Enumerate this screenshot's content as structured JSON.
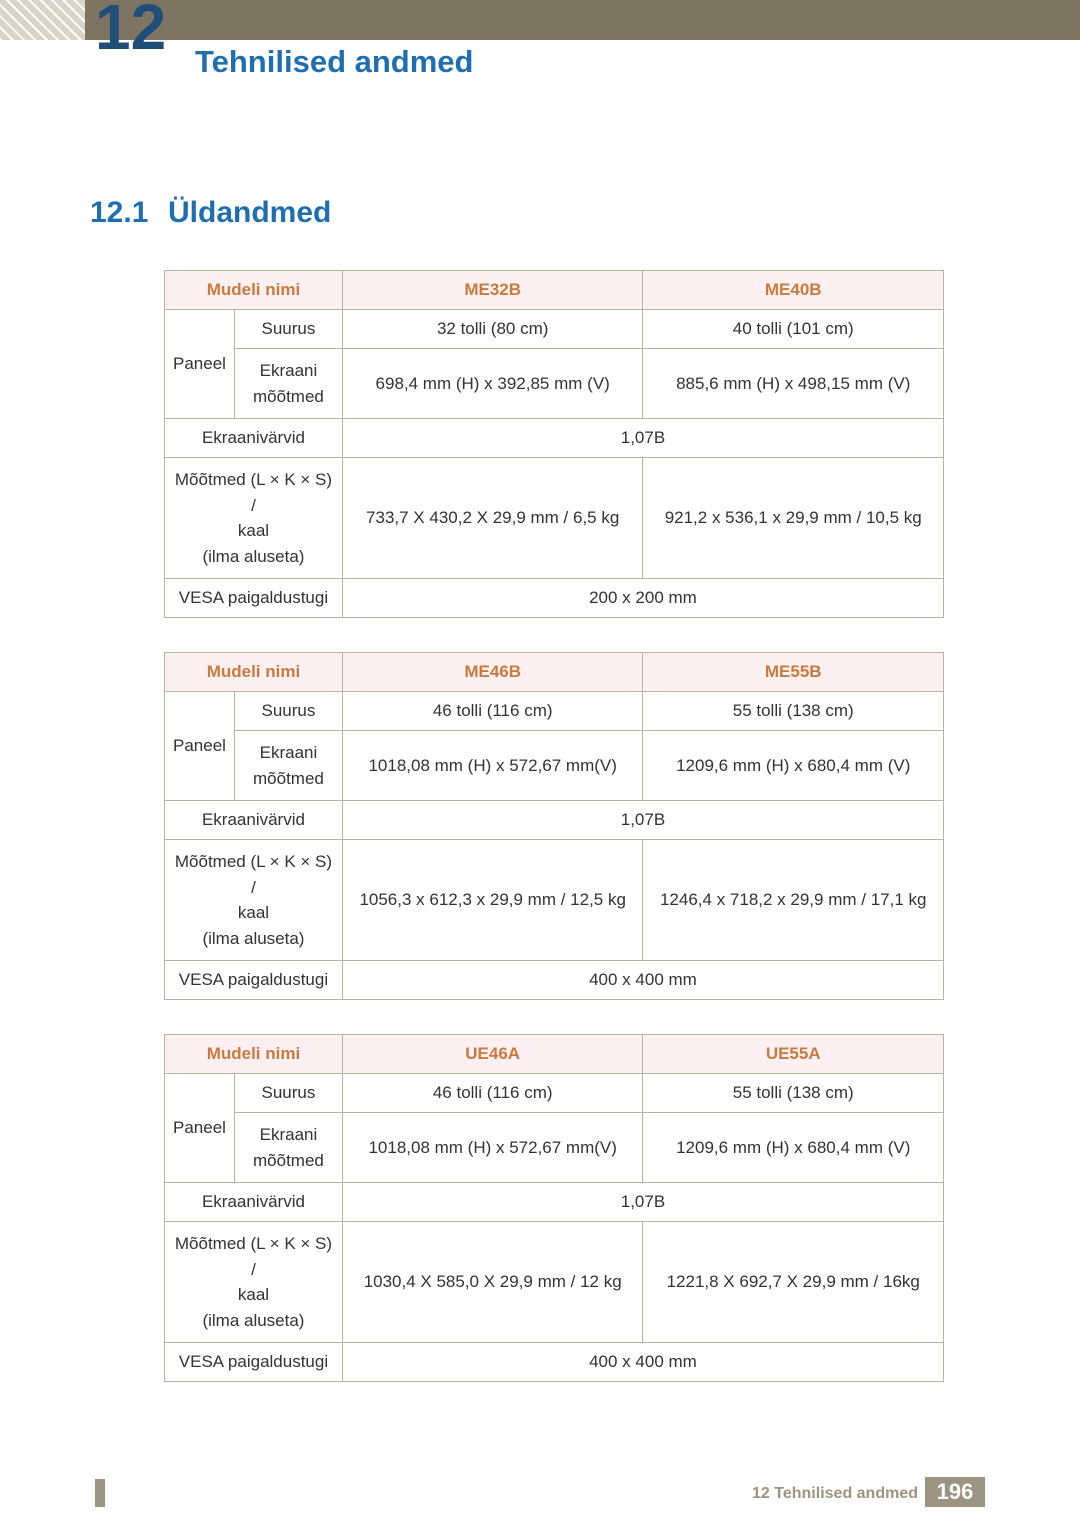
{
  "header": {
    "chapter_number_partial": "12",
    "chapter_title": "Tehnilised andmed"
  },
  "section": {
    "number": "12.1",
    "title": "Üldandmed"
  },
  "labels": {
    "model_name": "Mudeli nimi",
    "panel": "Paneel",
    "size": "Suurus",
    "screen_dims": "Ekraani mõõtmed",
    "screen_colors": "Ekraanivärvid",
    "dims_weight_l1": "Mõõtmed (L × K × S) /",
    "dims_weight_l2": "kaal",
    "dims_weight_l3": "(ilma aluseta)",
    "vesa": "VESA paigaldustugi"
  },
  "tables": [
    {
      "model_a": "ME32B",
      "model_b": "ME40B",
      "size_a": "32 tolli (80 cm)",
      "size_b": "40 tolli (101 cm)",
      "screen_a": "698,4 mm (H) x 392,85 mm (V)",
      "screen_b": "885,6 mm (H) x 498,15 mm (V)",
      "colors": "1,07B",
      "dims_a": "733,7 X 430,2 X 29,9 mm / 6,5 kg",
      "dims_b": "921,2 x 536,1 x 29,9 mm / 10,5 kg",
      "vesa": "200 x 200 mm"
    },
    {
      "model_a": "ME46B",
      "model_b": "ME55B",
      "size_a": "46 tolli (116 cm)",
      "size_b": "55 tolli (138 cm)",
      "screen_a": "1018,08 mm (H) x 572,67 mm(V)",
      "screen_b": "1209,6 mm (H) x 680,4 mm (V)",
      "colors": "1,07B",
      "dims_a": "1056,3 x 612,3 x 29,9 mm / 12,5 kg",
      "dims_b": "1246,4 x 718,2 x 29,9 mm / 17,1 kg",
      "vesa": "400 x 400 mm"
    },
    {
      "model_a": "UE46A",
      "model_b": "UE55A",
      "size_a": "46 tolli (116 cm)",
      "size_b": "55 tolli (138 cm)",
      "screen_a": "1018,08 mm (H) x 572,67 mm(V)",
      "screen_b": "1209,6 mm (H) x 680,4 mm (V)",
      "colors": "1,07B",
      "dims_a": "1030,4 X 585,0 X 29,9 mm / 12 kg",
      "dims_b": "1221,8 X 692,7 X 29,9 mm / 16kg",
      "vesa": "400 x 400 mm"
    }
  ],
  "footer": {
    "text": "12 Tehnilised andmed",
    "page": "196"
  },
  "colors": {
    "header_bar": "#7d7561",
    "blue_text": "#1f6fb0",
    "table_header_bg": "#fdf0f2",
    "table_header_text": "#c87a3f",
    "border": "#b8b4a5",
    "footer_gray": "#9a9481"
  }
}
